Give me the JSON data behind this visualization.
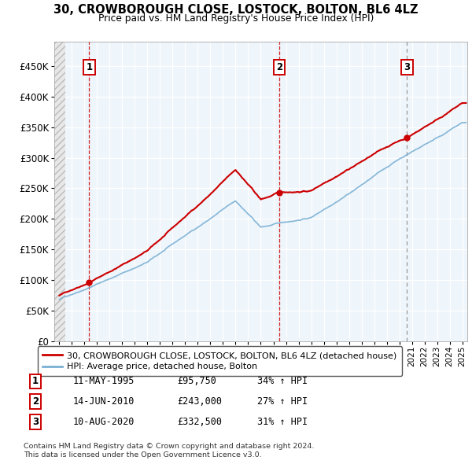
{
  "title": "30, CROWBOROUGH CLOSE, LOSTOCK, BOLTON, BL6 4LZ",
  "subtitle": "Price paid vs. HM Land Registry's House Price Index (HPI)",
  "sale_dates_dec": [
    1995.37,
    2010.46,
    2020.62
  ],
  "sale_prices": [
    95750,
    243000,
    332500
  ],
  "sale_labels": [
    "1",
    "2",
    "3"
  ],
  "sale_vline_colors": [
    "#cc0000",
    "#cc0000",
    "#888888"
  ],
  "sale_vline_styles": [
    "--",
    "--",
    ":"
  ],
  "sale_info": [
    {
      "label": "1",
      "date": "11-MAY-1995",
      "price": "£95,750",
      "hpi": "34% ↑ HPI"
    },
    {
      "label": "2",
      "date": "14-JUN-2010",
      "price": "£243,000",
      "hpi": "27% ↑ HPI"
    },
    {
      "label": "3",
      "date": "10-AUG-2020",
      "price": "£332,500",
      "hpi": "31% ↑ HPI"
    }
  ],
  "legend_line1": "30, CROWBOROUGH CLOSE, LOSTOCK, BOLTON, BL6 4LZ (detached house)",
  "legend_line2": "HPI: Average price, detached house, Bolton",
  "footnote1": "Contains HM Land Registry data © Crown copyright and database right 2024.",
  "footnote2": "This data is licensed under the Open Government Licence v3.0.",
  "price_line_color": "#cc0000",
  "hpi_line_color": "#7ab0d4",
  "ylim": [
    0,
    490000
  ],
  "yticks": [
    0,
    50000,
    100000,
    150000,
    200000,
    250000,
    300000,
    350000,
    400000,
    450000
  ],
  "ytick_labels": [
    "£0",
    "£50K",
    "£100K",
    "£150K",
    "£200K",
    "£250K",
    "£300K",
    "£350K",
    "£400K",
    "£450K"
  ],
  "xlim_start": 1992.6,
  "xlim_end": 2025.4
}
